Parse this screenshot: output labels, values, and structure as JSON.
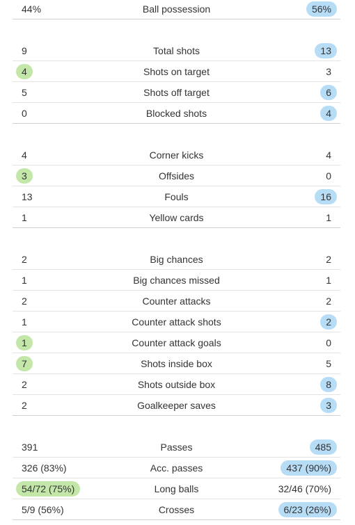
{
  "colors": {
    "home_highlight": "#c3e7a8",
    "away_highlight": "#b6dcf6",
    "divider": "#e3e3e3"
  },
  "groups": [
    {
      "stats": [
        {
          "label": "Ball possession",
          "home": "44%",
          "away": "56%",
          "highlight": "away"
        }
      ]
    },
    {
      "stats": [
        {
          "label": "Total shots",
          "home": "9",
          "away": "13",
          "highlight": "away"
        },
        {
          "label": "Shots on target",
          "home": "4",
          "away": "3",
          "highlight": "home"
        },
        {
          "label": "Shots off target",
          "home": "5",
          "away": "6",
          "highlight": "away"
        },
        {
          "label": "Blocked shots",
          "home": "0",
          "away": "4",
          "highlight": "away"
        }
      ]
    },
    {
      "stats": [
        {
          "label": "Corner kicks",
          "home": "4",
          "away": "4",
          "highlight": "none"
        },
        {
          "label": "Offsides",
          "home": "3",
          "away": "0",
          "highlight": "home"
        },
        {
          "label": "Fouls",
          "home": "13",
          "away": "16",
          "highlight": "away"
        },
        {
          "label": "Yellow cards",
          "home": "1",
          "away": "1",
          "highlight": "none"
        }
      ]
    },
    {
      "stats": [
        {
          "label": "Big chances",
          "home": "2",
          "away": "2",
          "highlight": "none"
        },
        {
          "label": "Big chances missed",
          "home": "1",
          "away": "1",
          "highlight": "none"
        },
        {
          "label": "Counter attacks",
          "home": "2",
          "away": "2",
          "highlight": "none"
        },
        {
          "label": "Counter attack shots",
          "home": "1",
          "away": "2",
          "highlight": "away"
        },
        {
          "label": "Counter attack goals",
          "home": "1",
          "away": "0",
          "highlight": "home"
        },
        {
          "label": "Shots inside box",
          "home": "7",
          "away": "5",
          "highlight": "home"
        },
        {
          "label": "Shots outside box",
          "home": "2",
          "away": "8",
          "highlight": "away"
        },
        {
          "label": "Goalkeeper saves",
          "home": "2",
          "away": "3",
          "highlight": "away"
        }
      ]
    },
    {
      "stats": [
        {
          "label": "Passes",
          "home": "391",
          "away": "485",
          "highlight": "away"
        },
        {
          "label": "Acc. passes",
          "home": "326 (83%)",
          "away": "437 (90%)",
          "highlight": "away"
        },
        {
          "label": "Long balls",
          "home": "54/72 (75%)",
          "away": "32/46 (70%)",
          "highlight": "home"
        },
        {
          "label": "Crosses",
          "home": "5/9 (56%)",
          "away": "6/23 (26%)",
          "highlight": "away"
        }
      ]
    }
  ]
}
